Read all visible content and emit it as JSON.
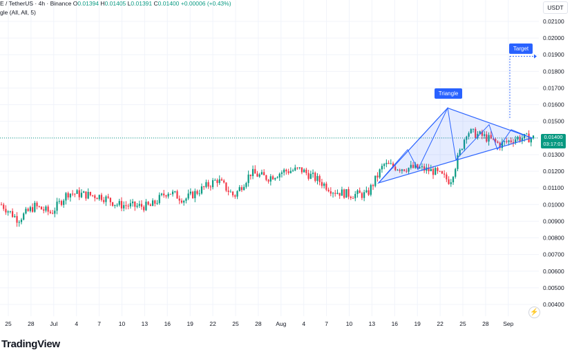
{
  "header": {
    "symbol": "E / TetherUS · 4h · Binance",
    "open_label": "O",
    "open": "0.01394",
    "high_label": "H",
    "high": "0.01405",
    "low_label": "L",
    "low": "0.01391",
    "close_label": "C",
    "close": "0.01400",
    "change": "+0.00006 (+0.43%)",
    "indicator": "gle (All, All, 5)"
  },
  "currency": "USDT",
  "brand": "TradingView",
  "price_tag": {
    "price": "0.01400",
    "countdown": "03:17:01"
  },
  "annotations": {
    "triangle_label": "Triangle",
    "target_label": "Target"
  },
  "icons": {
    "alert": "lightning-bolt-icon"
  },
  "colors": {
    "up": "#089981",
    "down": "#f23645",
    "drawing": "#2962ff",
    "pattern_fill": "#2962ff"
  },
  "chart_data": {
    "type": "candlestick",
    "ylim": [
      0.004,
      0.0215
    ],
    "y_ticks": [
      "0.02100",
      "0.02000",
      "0.01900",
      "0.01800",
      "0.01700",
      "0.01600",
      "0.01500",
      "0.01400",
      "0.01300",
      "0.01200",
      "0.01100",
      "0.01000",
      "0.00900",
      "0.00800",
      "0.00700",
      "0.00600",
      "0.00500",
      "0.00400"
    ],
    "x_ticks": [
      "25",
      "28",
      "Jul",
      "4",
      "7",
      "10",
      "13",
      "16",
      "19",
      "22",
      "25",
      "28",
      "Aug",
      "4",
      "7",
      "10",
      "13",
      "16",
      "19",
      "22",
      "25",
      "28",
      "Sep"
    ],
    "series": [
      {
        "points": [
          [
            0.0105,
            0.01
          ],
          [
            0.0095,
            0.0091
          ],
          [
            0.0097,
            0.0099
          ],
          [
            0.0097,
            0.0095
          ],
          [
            0.0102,
            0.0107
          ],
          [
            0.0108,
            0.0106
          ],
          [
            0.0106,
            0.0105
          ],
          [
            0.0099,
            0.01
          ],
          [
            0.0102,
            0.0099
          ],
          [
            0.01,
            0.0099
          ],
          [
            0.0104,
            0.0108
          ],
          [
            0.0108,
            0.0103
          ],
          [
            0.0106,
            0.0109
          ],
          [
            0.0112,
            0.0115
          ],
          [
            0.0108,
            0.0105
          ],
          [
            0.0112,
            0.0119
          ],
          [
            0.0123,
            0.0116
          ],
          [
            0.0124,
            0.012
          ],
          [
            0.0119,
            0.0121
          ],
          [
            0.0112,
            0.0115
          ],
          [
            0.0107,
            0.0108
          ],
          [
            0.0104,
            0.0106
          ],
          [
            0.0108,
            0.0106
          ],
          [
            0.0126,
            0.0124
          ],
          [
            0.0126,
            0.0122
          ],
          [
            0.0123,
            0.0122
          ],
          [
            0.0122,
            0.012
          ],
          [
            0.0116,
            0.0114
          ],
          [
            0.0135,
            0.0144
          ],
          [
            0.0151,
            0.0141
          ],
          [
            0.0143,
            0.0136
          ],
          [
            0.0134,
            0.014
          ],
          [
            0.014,
            0.014
          ]
        ],
        "point_fields": [
          "time_index",
          "close"
        ],
        "time_index": [
          0,
          0.6,
          1.2,
          1.8,
          2.4,
          3.0,
          3.6,
          4.2,
          4.8,
          5.4,
          6.0,
          6.6,
          7.2,
          7.8,
          8.4,
          9.0,
          9.6,
          10.2,
          10.8,
          11.4,
          12.0,
          12.6,
          13.2,
          13.8,
          14.4,
          15.0,
          15.6,
          16.2,
          16.8,
          17.4,
          18.0,
          18.6,
          19.2
        ]
      }
    ],
    "triangle": {
      "apex_high": 0.0158,
      "support_start": 0.0113,
      "end_price": 0.014
    },
    "target_price": 0.0189
  }
}
